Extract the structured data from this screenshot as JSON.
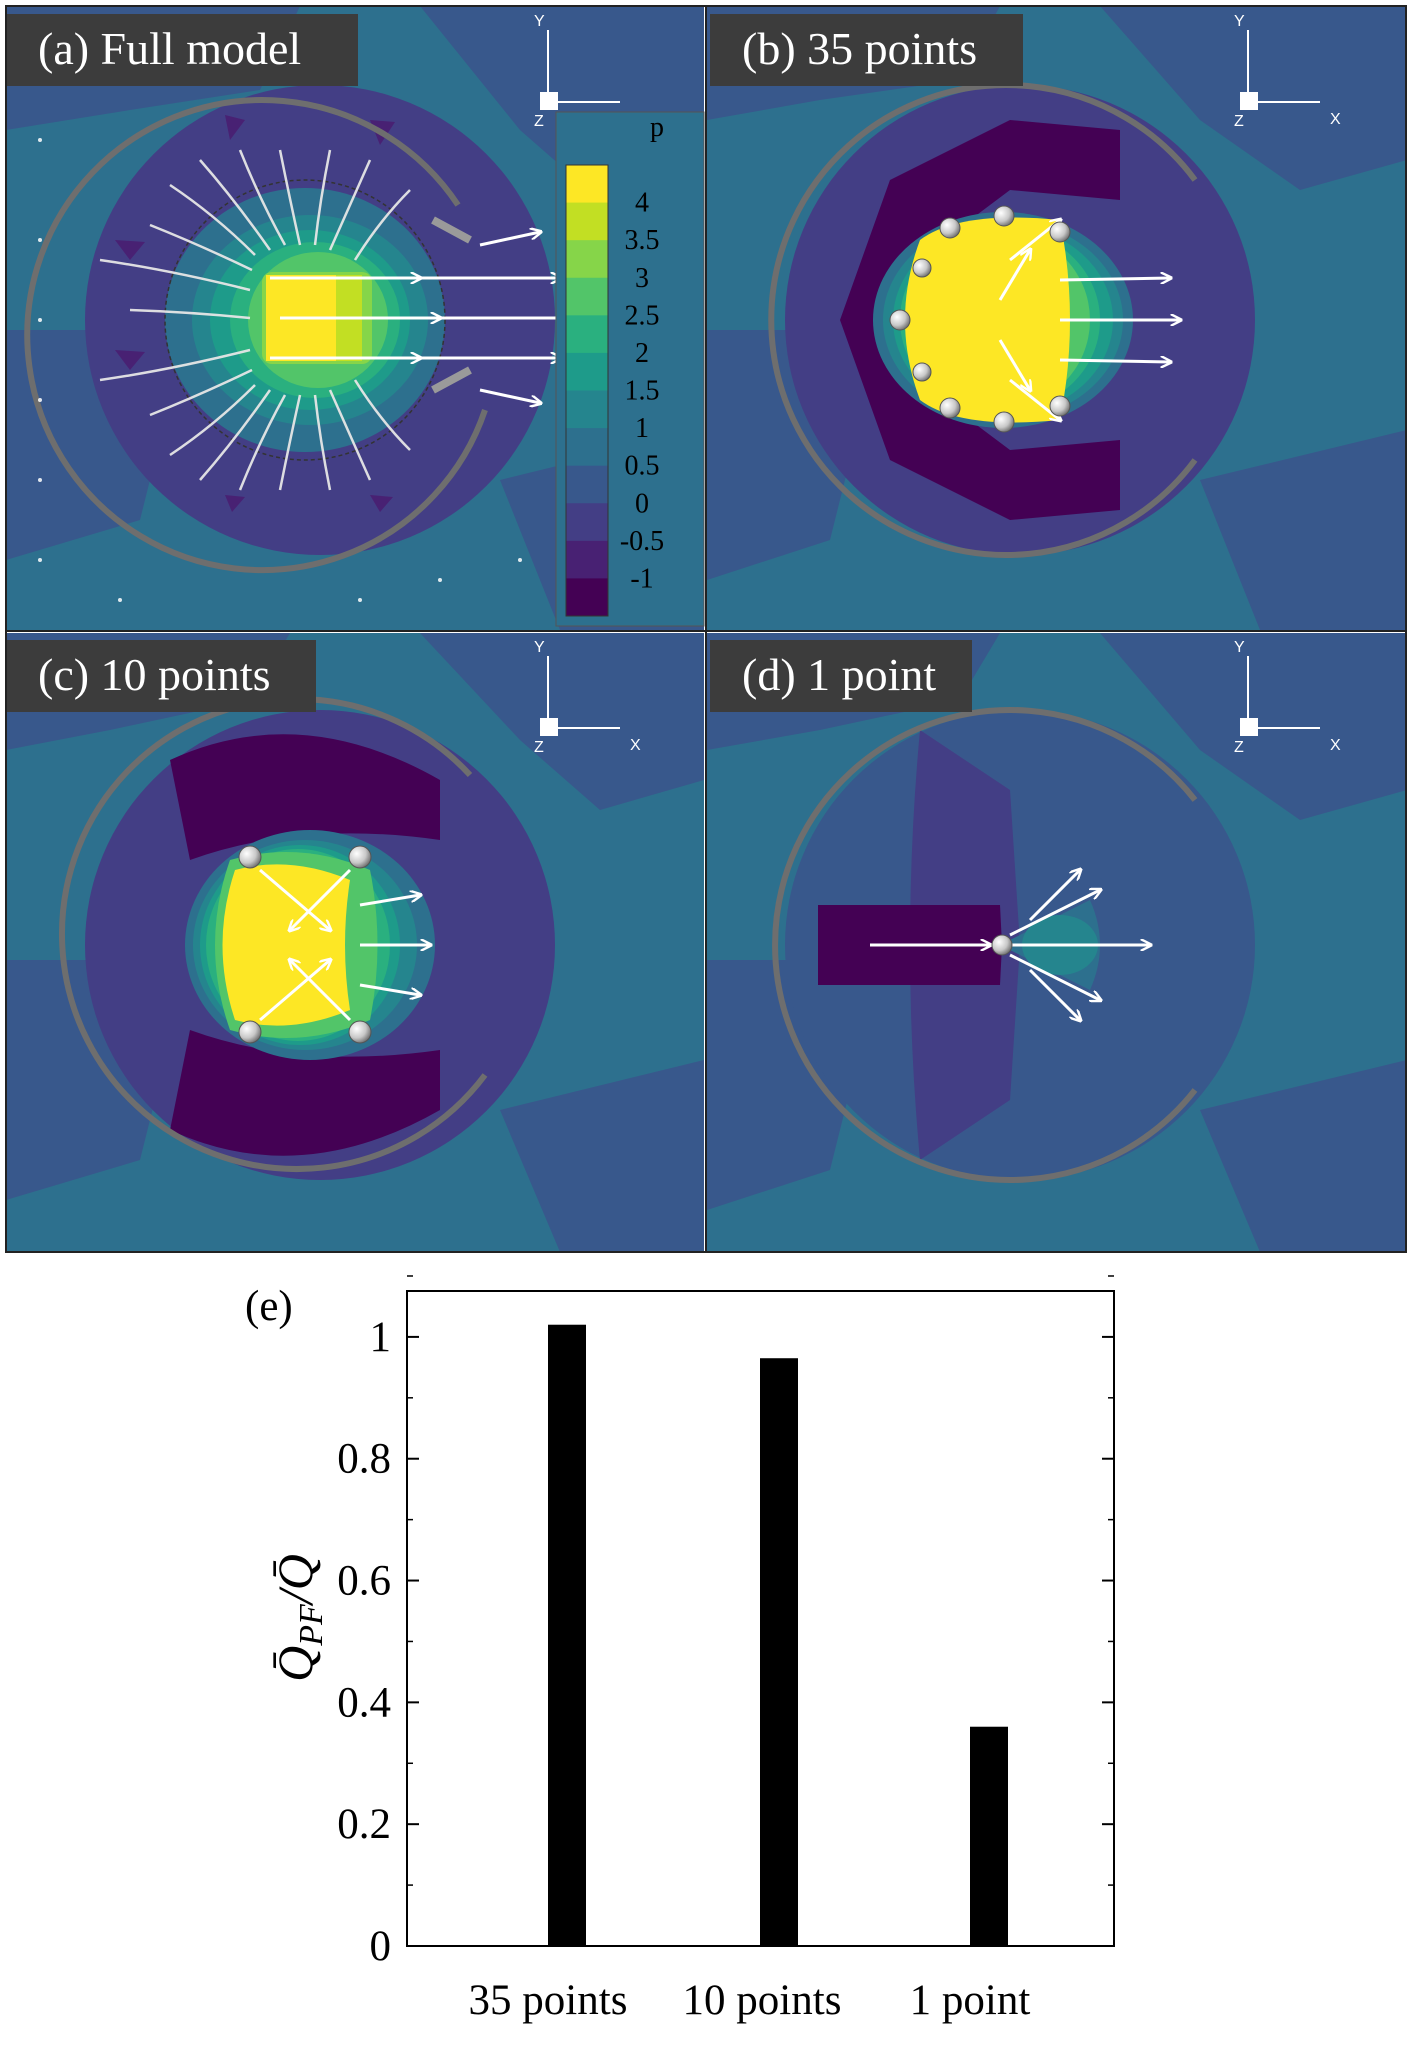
{
  "panels": [
    {
      "label": "(a) Full model",
      "points": 0
    },
    {
      "label": "(b) 35 points",
      "points": 35
    },
    {
      "label": "(c) 10 points",
      "points": 10
    },
    {
      "label": "(d) 1 point",
      "points": 1
    }
  ],
  "axis_triad": {
    "x": "X",
    "y": "Y",
    "z": "Z"
  },
  "colorbar": {
    "title": "p",
    "levels": [
      "4",
      "3.5",
      "3",
      "2.5",
      "2",
      "1.5",
      "1",
      "0.5",
      "0",
      "-0.5",
      "-1"
    ],
    "colors": [
      "#fde725",
      "#c2df23",
      "#86d549",
      "#52c569",
      "#2ab07f",
      "#1e9b8a",
      "#25858e",
      "#2d708e",
      "#38588c",
      "#433e85",
      "#482173",
      "#440154"
    ]
  },
  "chart_data": {
    "type": "bar",
    "panel_label": "(e)",
    "categories": [
      "35 points",
      "10 points",
      "1 point"
    ],
    "values": [
      1.02,
      0.965,
      0.36
    ],
    "ylabel": "Q̄PF/Q̄",
    "ylabel_main": "Q̄",
    "ylabel_sub": "PF",
    "ylabel_den": "/Q̄",
    "ylim": [
      0,
      1.1
    ],
    "yticks": [
      "0",
      "0.2",
      "0.4",
      "0.6",
      "0.8",
      "1"
    ],
    "bar_color": "#000000"
  }
}
